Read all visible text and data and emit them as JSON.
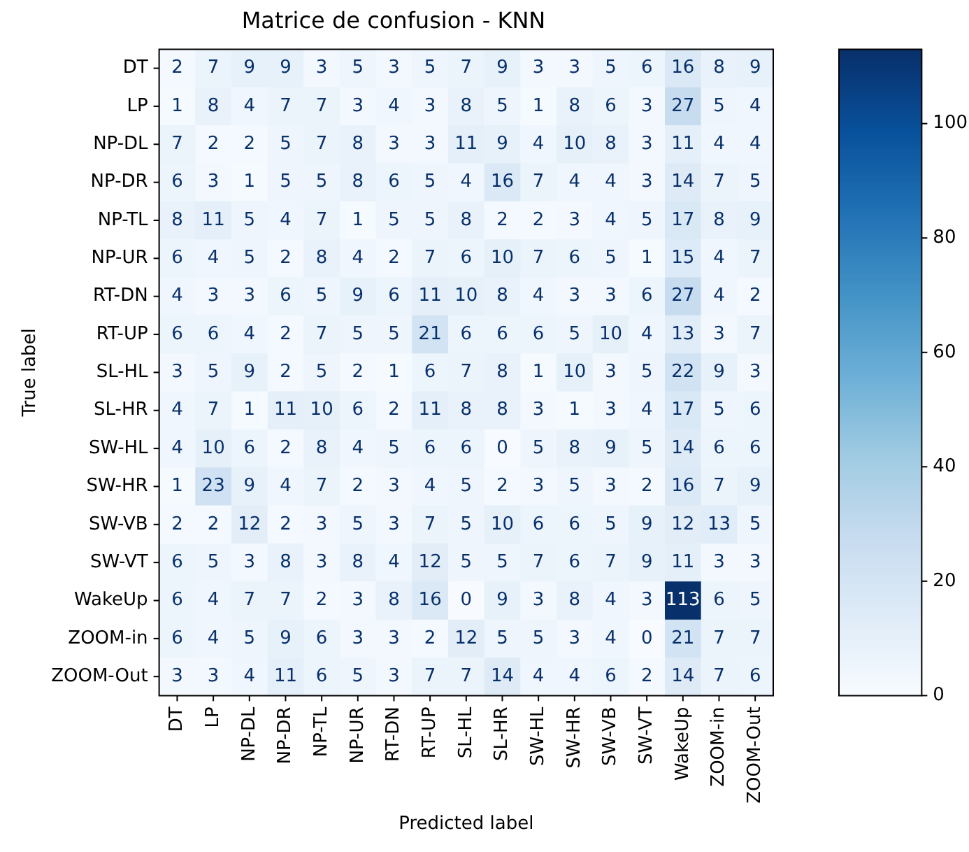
{
  "chart_data": {
    "type": "heatmap",
    "title": "Matrice de confusion - KNN",
    "xlabel": "Predicted label",
    "ylabel": "True label",
    "categories": [
      "DT",
      "LP",
      "NP-DL",
      "NP-DR",
      "NP-TL",
      "NP-UR",
      "RT-DN",
      "RT-UP",
      "SL-HL",
      "SL-HR",
      "SW-HL",
      "SW-HR",
      "SW-VB",
      "SW-VT",
      "WakeUp",
      "ZOOM-in",
      "ZOOM-Out"
    ],
    "y_categories": [
      "DT",
      "LP",
      "NP-DL",
      "NP-DR",
      "NP-TL",
      "NP-UR",
      "RT-DN",
      "RT-UP",
      "SL-HL",
      "SL-HR",
      "SW-HL",
      "SW-HR",
      "SW-VB",
      "SW-VT",
      "WakeUp",
      "ZOOM-in",
      "ZOOM-Out"
    ],
    "cells": [
      [
        2,
        7,
        9,
        9,
        3,
        5,
        3,
        5,
        7,
        9,
        3,
        3,
        5,
        6,
        16,
        8,
        9
      ],
      [
        1,
        8,
        4,
        7,
        7,
        3,
        4,
        3,
        8,
        5,
        1,
        8,
        6,
        3,
        27,
        5,
        4
      ],
      [
        7,
        2,
        2,
        5,
        7,
        8,
        3,
        3,
        11,
        9,
        4,
        10,
        8,
        3,
        11,
        4,
        4
      ],
      [
        6,
        3,
        1,
        5,
        5,
        8,
        6,
        5,
        4,
        16,
        7,
        4,
        4,
        3,
        14,
        7,
        5
      ],
      [
        8,
        11,
        5,
        4,
        7,
        1,
        5,
        5,
        8,
        2,
        2,
        3,
        4,
        5,
        17,
        8,
        9
      ],
      [
        6,
        4,
        5,
        2,
        8,
        4,
        2,
        7,
        6,
        10,
        7,
        6,
        5,
        1,
        15,
        4,
        7
      ],
      [
        4,
        3,
        3,
        6,
        5,
        9,
        6,
        11,
        10,
        8,
        4,
        3,
        3,
        6,
        27,
        4,
        2
      ],
      [
        6,
        6,
        4,
        2,
        7,
        5,
        5,
        21,
        6,
        6,
        6,
        5,
        10,
        4,
        13,
        3,
        7
      ],
      [
        3,
        5,
        9,
        2,
        5,
        2,
        1,
        6,
        7,
        8,
        1,
        10,
        3,
        5,
        22,
        9,
        3
      ],
      [
        4,
        7,
        1,
        11,
        10,
        6,
        2,
        11,
        8,
        8,
        3,
        1,
        3,
        4,
        17,
        5,
        6
      ],
      [
        4,
        10,
        6,
        2,
        8,
        4,
        5,
        6,
        6,
        0,
        5,
        8,
        9,
        5,
        14,
        6,
        6
      ],
      [
        1,
        23,
        9,
        4,
        7,
        2,
        3,
        4,
        5,
        2,
        3,
        5,
        3,
        2,
        16,
        7,
        9
      ],
      [
        2,
        2,
        12,
        2,
        3,
        5,
        3,
        7,
        5,
        10,
        6,
        6,
        5,
        9,
        12,
        13,
        5
      ],
      [
        6,
        5,
        3,
        8,
        3,
        8,
        4,
        12,
        5,
        5,
        7,
        6,
        7,
        9,
        11,
        3,
        3
      ],
      [
        6,
        4,
        7,
        7,
        2,
        3,
        8,
        16,
        0,
        9,
        3,
        8,
        4,
        3,
        113,
        6,
        5
      ],
      [
        6,
        4,
        5,
        9,
        6,
        3,
        3,
        2,
        12,
        5,
        5,
        3,
        4,
        0,
        21,
        7,
        7
      ],
      [
        3,
        3,
        4,
        11,
        6,
        5,
        3,
        7,
        7,
        14,
        4,
        4,
        6,
        2,
        14,
        7,
        6
      ]
    ],
    "data_labels": true,
    "clim": [
      0,
      113
    ],
    "cticks": [
      0,
      20,
      40,
      60,
      80,
      100
    ]
  }
}
